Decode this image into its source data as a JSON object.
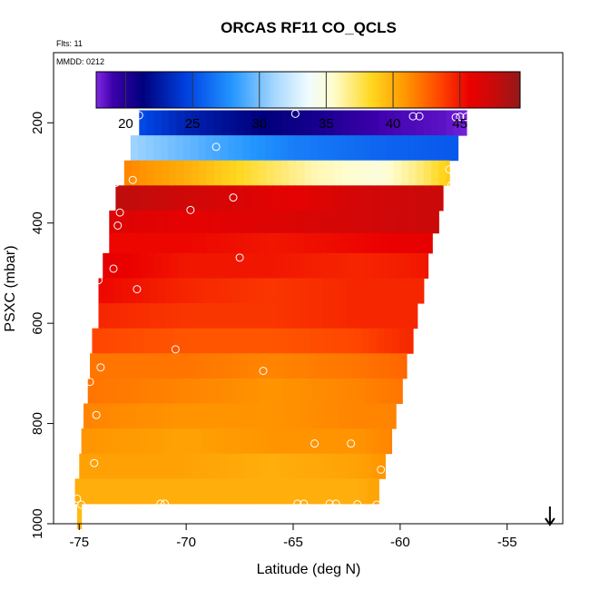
{
  "chart_data": {
    "type": "heatmap",
    "title": "ORCAS RF11 CO_QCLS",
    "flights_note": "Flts: 11",
    "date_note": "MMDD: 0212",
    "xlabel": "Latitude (deg N)",
    "ylabel": "PSXC (mbar)",
    "xlim": [
      -76.2,
      -52.4
    ],
    "ylim": [
      1000,
      60
    ],
    "x_ticks": [
      -75,
      -70,
      -65,
      -60,
      -55
    ],
    "x_tick_labels": [
      "-75",
      "-70",
      "-65",
      "-60",
      "-55"
    ],
    "y_ticks": [
      200,
      400,
      600,
      800,
      1000
    ],
    "y_tick_labels": [
      "200",
      "400",
      "600",
      "800",
      "1000"
    ],
    "colorbar": {
      "range": [
        17.8,
        49.5
      ],
      "ticks": [
        20,
        25,
        30,
        35,
        40,
        45
      ],
      "tick_labels": [
        "20",
        "25",
        "30",
        "35",
        "40",
        "45"
      ]
    },
    "bands": [
      {
        "p_top": 175,
        "p_bot": 225,
        "lat_start": -72.2,
        "lat_end": -56.9,
        "values": [
          [
            -72.2,
            25
          ],
          [
            -70,
            23
          ],
          [
            -67,
            21.5
          ],
          [
            -64,
            20.5
          ],
          [
            -61,
            19
          ],
          [
            -58,
            18.5
          ],
          [
            -56.9,
            18
          ]
        ]
      },
      {
        "p_top": 225,
        "p_bot": 275,
        "lat_start": -72.6,
        "lat_end": -57.3,
        "values": [
          [
            -72.6,
            31
          ],
          [
            -69,
            29
          ],
          [
            -65,
            27
          ],
          [
            -61,
            26
          ],
          [
            -57.3,
            25.5
          ]
        ]
      },
      {
        "p_top": 275,
        "p_bot": 325,
        "lat_start": -72.9,
        "lat_end": -57.7,
        "values": [
          [
            -72.9,
            41.5
          ],
          [
            -70,
            40
          ],
          [
            -67,
            38
          ],
          [
            -64,
            36
          ],
          [
            -61,
            35
          ],
          [
            -59,
            37
          ],
          [
            -57.7,
            39
          ]
        ]
      },
      {
        "p_top": 325,
        "p_bot": 375,
        "lat_start": -73.3,
        "lat_end": -58.0,
        "values": [
          [
            -73.3,
            48
          ],
          [
            -69,
            47
          ],
          [
            -65,
            46
          ],
          [
            -62,
            47
          ],
          [
            -58,
            47.5
          ]
        ]
      },
      {
        "p_top": 375,
        "p_bot": 420,
        "lat_start": -73.6,
        "lat_end": -58.2,
        "values": [
          [
            -73.6,
            46.5
          ],
          [
            -70,
            46
          ],
          [
            -66,
            46.5
          ],
          [
            -62,
            47
          ],
          [
            -58.2,
            47.5
          ]
        ]
      },
      {
        "p_top": 420,
        "p_bot": 460,
        "lat_start": -73.6,
        "lat_end": -58.5,
        "values": [
          [
            -73.6,
            45.5
          ],
          [
            -70,
            45.5
          ],
          [
            -66,
            45
          ],
          [
            -62,
            45.5
          ],
          [
            -58.5,
            46
          ]
        ]
      },
      {
        "p_top": 460,
        "p_bot": 510,
        "lat_start": -73.9,
        "lat_end": -58.7,
        "values": [
          [
            -73.9,
            46
          ],
          [
            -70,
            45
          ],
          [
            -66,
            45
          ],
          [
            -62,
            44.5
          ],
          [
            -58.7,
            45
          ]
        ]
      },
      {
        "p_top": 510,
        "p_bot": 560,
        "lat_start": -74.1,
        "lat_end": -58.9,
        "values": [
          [
            -74.1,
            45.5
          ],
          [
            -70,
            44.5
          ],
          [
            -66,
            44
          ],
          [
            -62,
            44.5
          ],
          [
            -58.9,
            44.5
          ]
        ]
      },
      {
        "p_top": 560,
        "p_bot": 610,
        "lat_start": -74.1,
        "lat_end": -59.2,
        "values": [
          [
            -74.1,
            44.5
          ],
          [
            -70,
            44
          ],
          [
            -66,
            44
          ],
          [
            -62,
            44.5
          ],
          [
            -59.2,
            44.5
          ]
        ]
      },
      {
        "p_top": 610,
        "p_bot": 660,
        "lat_start": -74.4,
        "lat_end": -59.4,
        "values": [
          [
            -74.4,
            43.5
          ],
          [
            -70,
            43
          ],
          [
            -66,
            43
          ],
          [
            -62,
            43.5
          ],
          [
            -59.4,
            44.5
          ]
        ]
      },
      {
        "p_top": 660,
        "p_bot": 710,
        "lat_start": -74.5,
        "lat_end": -59.7,
        "values": [
          [
            -74.5,
            42
          ],
          [
            -70,
            42
          ],
          [
            -66,
            41.5
          ],
          [
            -62,
            42
          ],
          [
            -59.7,
            42.5
          ]
        ]
      },
      {
        "p_top": 710,
        "p_bot": 760,
        "lat_start": -74.6,
        "lat_end": -59.9,
        "values": [
          [
            -74.6,
            42
          ],
          [
            -70,
            41.5
          ],
          [
            -66,
            41
          ],
          [
            -62,
            41.5
          ],
          [
            -59.9,
            42
          ]
        ]
      },
      {
        "p_top": 760,
        "p_bot": 810,
        "lat_start": -74.8,
        "lat_end": -60.2,
        "values": [
          [
            -74.8,
            41.5
          ],
          [
            -70,
            41
          ],
          [
            -66,
            41
          ],
          [
            -62,
            41.5
          ],
          [
            -60.2,
            41.5
          ]
        ]
      },
      {
        "p_top": 810,
        "p_bot": 860,
        "lat_start": -74.9,
        "lat_end": -60.4,
        "values": [
          [
            -74.9,
            41
          ],
          [
            -70,
            40.5
          ],
          [
            -66,
            41
          ],
          [
            -62,
            41
          ],
          [
            -60.4,
            41.5
          ]
        ]
      },
      {
        "p_top": 860,
        "p_bot": 910,
        "lat_start": -75.0,
        "lat_end": -60.7,
        "values": [
          [
            -75,
            40.5
          ],
          [
            -70,
            40.5
          ],
          [
            -66,
            40
          ],
          [
            -62,
            40.5
          ],
          [
            -60.7,
            41
          ]
        ]
      },
      {
        "p_top": 910,
        "p_bot": 960,
        "lat_start": -75.2,
        "lat_end": -61.0,
        "values": [
          [
            -75.2,
            40
          ],
          [
            -70,
            40
          ],
          [
            -66,
            40
          ],
          [
            -62,
            40
          ],
          [
            -61,
            40.5
          ]
        ]
      },
      {
        "p_top": 960,
        "p_bot": 1010,
        "lat_start": -75.1,
        "lat_end": -74.9,
        "values": [
          [
            -75.1,
            39.5
          ],
          [
            -74.9,
            39.5
          ]
        ]
      }
    ],
    "markers": [
      [
        -72.2,
        185
      ],
      [
        -64.9,
        182
      ],
      [
        -59.4,
        187
      ],
      [
        -59.1,
        187
      ],
      [
        -57.4,
        189
      ],
      [
        -57.2,
        188
      ],
      [
        -56.9,
        188
      ],
      [
        -68.6,
        248
      ],
      [
        -57.7,
        293
      ],
      [
        -72.5,
        314
      ],
      [
        -73.3,
        320
      ],
      [
        -57.6,
        324
      ],
      [
        -57.3,
        321
      ],
      [
        -67.8,
        349
      ],
      [
        -73.7,
        364
      ],
      [
        -69.8,
        374
      ],
      [
        -73.1,
        379
      ],
      [
        -73.2,
        405
      ],
      [
        -67.5,
        469
      ],
      [
        -73.4,
        491
      ],
      [
        -74.1,
        514
      ],
      [
        -72.3,
        532
      ],
      [
        -70.5,
        652
      ],
      [
        -66.4,
        695
      ],
      [
        -74.0,
        688
      ],
      [
        -74.5,
        717
      ],
      [
        -74.2,
        783
      ],
      [
        -64.0,
        840
      ],
      [
        -62.3,
        840
      ],
      [
        -74.3,
        879
      ],
      [
        -60.9,
        892
      ],
      [
        -75.1,
        950
      ],
      [
        -74.9,
        962
      ],
      [
        -71.2,
        960
      ],
      [
        -71.0,
        960
      ],
      [
        -64.8,
        960
      ],
      [
        -64.5,
        960
      ],
      [
        -63.3,
        960
      ],
      [
        -63.0,
        960
      ],
      [
        -62.0,
        961
      ],
      [
        -61.1,
        962
      ]
    ],
    "arrow_marker": {
      "lat": -53.0,
      "p_tip": 1000
    }
  }
}
